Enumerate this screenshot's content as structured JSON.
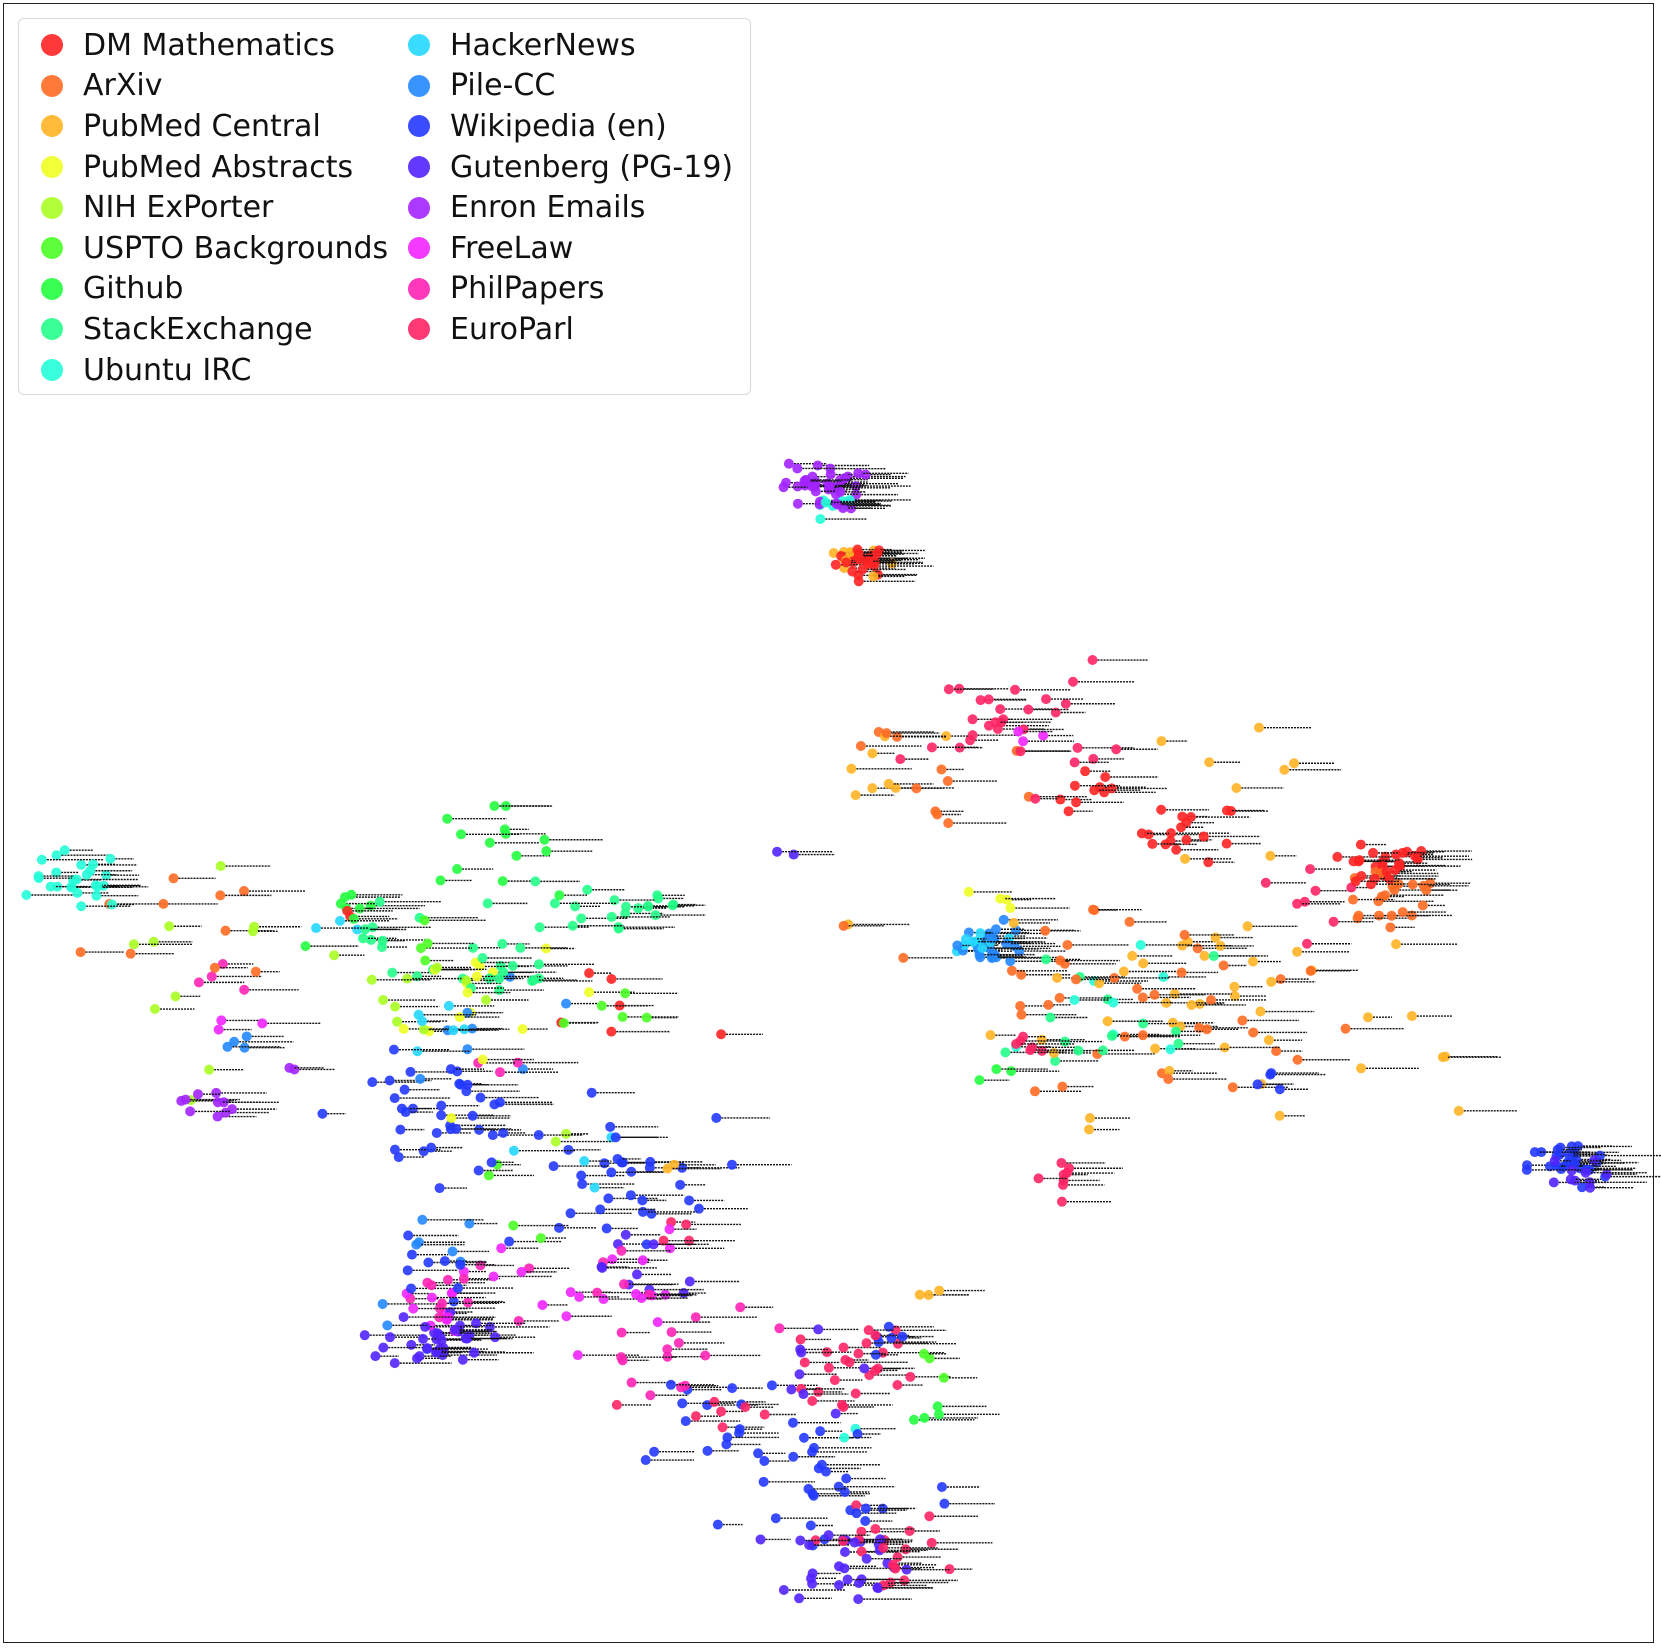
{
  "chart_data": {
    "type": "scatter",
    "title": "",
    "xlabel": "",
    "ylabel": "",
    "grid": false,
    "axes_visible": false,
    "legend_placement": "top-left",
    "xlim": [
      0,
      100
    ],
    "ylim": [
      0,
      100
    ],
    "series": [
      {
        "name": "DM Mathematics",
        "color": "#ff2424",
        "clusters": [
          [
            52,
            87,
            0.8,
            25
          ],
          [
            66,
            68,
            1.2,
            10
          ],
          [
            72,
            65,
            1.5,
            18
          ],
          [
            83,
            62,
            1.0,
            20
          ],
          [
            20.5,
            58.5,
            0.3,
            2
          ],
          [
            37,
            50,
            3.0,
            6
          ],
          [
            85,
            63,
            0.7,
            8
          ]
        ]
      },
      {
        "name": "ArXiv",
        "color": "#ff6a24",
        "clusters": [
          [
            72,
            50,
            5,
            30
          ],
          [
            60,
            54,
            4,
            12
          ],
          [
            84,
            60,
            2,
            22
          ],
          [
            13,
            58,
            4,
            10
          ],
          [
            53,
            73,
            1,
            4
          ],
          [
            57,
            68,
            3,
            8
          ]
        ]
      },
      {
        "name": "PubMed Central",
        "color": "#ffb424",
        "clusters": [
          [
            72,
            52,
            6,
            45
          ],
          [
            51,
            87,
            1,
            10
          ],
          [
            53,
            70,
            2,
            8
          ],
          [
            88,
            47,
            0.5,
            2
          ],
          [
            76,
            72,
            2,
            6
          ],
          [
            56,
            28,
            0.6,
            3
          ],
          [
            40,
            38,
            0.3,
            2
          ]
        ]
      },
      {
        "name": "PubMed Abstracts",
        "color": "#f0ff24",
        "clusters": [
          [
            30,
            50,
            3,
            12
          ],
          [
            60,
            59,
            1,
            4
          ],
          [
            28,
            54,
            2,
            4
          ]
        ]
      },
      {
        "name": "NIH ExPorter",
        "color": "#aaff24",
        "clusters": [
          [
            25,
            52,
            3,
            10
          ],
          [
            10,
            57,
            3,
            8
          ],
          [
            12,
            45,
            1,
            2
          ],
          [
            34,
            40,
            0.5,
            2
          ]
        ]
      },
      {
        "name": "USPTO Backgrounds",
        "color": "#4aff24",
        "clusters": [
          [
            31,
            35,
            2,
            4
          ],
          [
            56,
            22,
            1,
            3
          ],
          [
            37,
            50,
            2,
            5
          ],
          [
            25,
            56,
            1,
            4
          ]
        ]
      },
      {
        "name": "Github",
        "color": "#24ff40",
        "clusters": [
          [
            29,
            64,
            2,
            14
          ],
          [
            21,
            58,
            1.5,
            8
          ],
          [
            56,
            18,
            0.6,
            4
          ],
          [
            60,
            45,
            1,
            3
          ]
        ]
      },
      {
        "name": "StackExchange",
        "color": "#24ff88",
        "clusters": [
          [
            38,
            59,
            2,
            16
          ],
          [
            30,
            54,
            2,
            18
          ],
          [
            23,
            56,
            2,
            10
          ],
          [
            67,
            50,
            4,
            10
          ],
          [
            62,
            46,
            2,
            4
          ],
          [
            33,
            58,
            2,
            6
          ]
        ]
      },
      {
        "name": "Ubuntu IRC",
        "color": "#24ffd8",
        "clusters": [
          [
            4,
            61,
            1.5,
            26
          ],
          [
            50,
            91,
            0.8,
            8
          ],
          [
            68,
            50,
            3,
            8
          ],
          [
            52,
            17,
            0.5,
            2
          ]
        ]
      },
      {
        "name": "HackerNews",
        "color": "#24d8ff",
        "clusters": [
          [
            59,
            56,
            0.8,
            10
          ],
          [
            27,
            50,
            2,
            6
          ],
          [
            20,
            57,
            1,
            3
          ],
          [
            35,
            38,
            1.5,
            4
          ]
        ]
      },
      {
        "name": "Pile-CC",
        "color": "#2488ff",
        "clusters": [
          [
            60,
            56,
            1,
            24
          ],
          [
            30,
            50,
            3,
            8
          ],
          [
            27,
            30,
            3,
            8
          ],
          [
            13,
            48,
            1,
            4
          ]
        ]
      },
      {
        "name": "Wikipedia (en)",
        "color": "#2438ff",
        "clusters": [
          [
            26,
            42,
            3,
            40
          ],
          [
            37,
            37,
            3,
            30
          ],
          [
            95,
            38,
            1.2,
            28
          ],
          [
            50,
            12,
            4,
            30
          ],
          [
            43,
            18,
            3,
            16
          ],
          [
            26,
            30,
            3,
            10
          ],
          [
            54,
            24,
            1,
            6
          ],
          [
            77,
            44,
            1,
            4
          ]
        ]
      },
      {
        "name": "Gutenberg (PG-19)",
        "color": "#5224ff",
        "clusters": [
          [
            26,
            24,
            1.5,
            36
          ],
          [
            51,
            6,
            2,
            30
          ],
          [
            38,
            30,
            3,
            10
          ],
          [
            48,
            21,
            2,
            8
          ],
          [
            95,
            37,
            1,
            10
          ],
          [
            47,
            63,
            0.5,
            2
          ]
        ]
      },
      {
        "name": "Enron Emails",
        "color": "#a224ff",
        "clusters": [
          [
            49.5,
            93,
            1.2,
            40
          ],
          [
            12,
            43,
            0.8,
            10
          ],
          [
            17,
            46,
            0.3,
            2
          ]
        ]
      },
      {
        "name": "FreeLaw",
        "color": "#f024ff",
        "clusters": [
          [
            36,
            28,
            3,
            18
          ],
          [
            26,
            26,
            2,
            12
          ],
          [
            14,
            49,
            1,
            3
          ],
          [
            62,
            73,
            1,
            3
          ]
        ]
      },
      {
        "name": "PhilPapers",
        "color": "#ff24b4",
        "clusters": [
          [
            40,
            25,
            4,
            16
          ],
          [
            27,
            27,
            2,
            10
          ],
          [
            12,
            53,
            1,
            4
          ],
          [
            30,
            46,
            1,
            3
          ],
          [
            39,
            22,
            2,
            6
          ]
        ]
      },
      {
        "name": "EuroParl",
        "color": "#ff2464",
        "clusters": [
          [
            61,
            74,
            3,
            30
          ],
          [
            52,
            22,
            2,
            25
          ],
          [
            53,
            7,
            2,
            20
          ],
          [
            43,
            18,
            2,
            8
          ],
          [
            64,
            37,
            1,
            8
          ],
          [
            62,
            48,
            1,
            6
          ],
          [
            80,
            61,
            2,
            8
          ],
          [
            41,
            32,
            1,
            4
          ]
        ]
      }
    ]
  }
}
